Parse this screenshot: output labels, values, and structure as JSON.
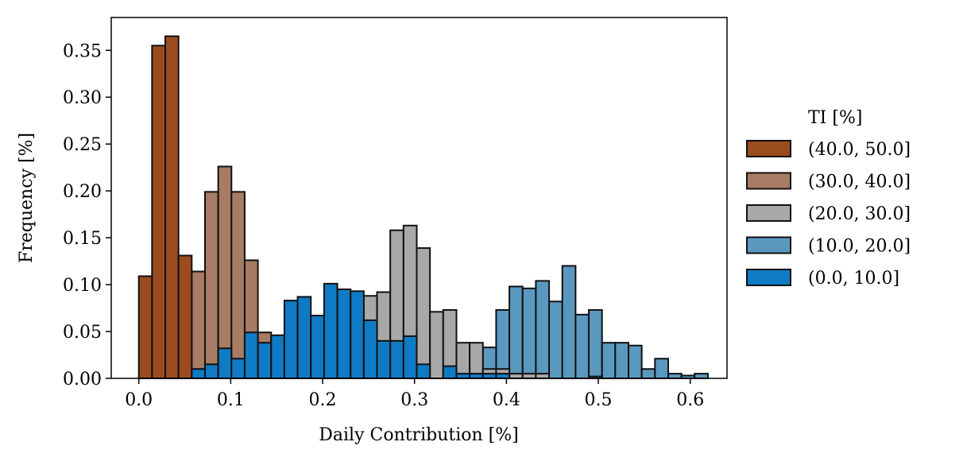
{
  "chart_data": {
    "type": "bar",
    "title": "",
    "xlabel": "Daily Contribution [%]",
    "ylabel": "Frequency [%]",
    "xlim": [
      -0.03,
      0.64
    ],
    "ylim": [
      0,
      0.385
    ],
    "xticks": [
      0.0,
      0.1,
      0.2,
      0.3,
      0.4,
      0.5,
      0.6
    ],
    "xtick_labels": [
      "0.0",
      "0.1",
      "0.2",
      "0.3",
      "0.4",
      "0.5",
      "0.6"
    ],
    "yticks": [
      0.0,
      0.05,
      0.1,
      0.15,
      0.2,
      0.25,
      0.3,
      0.35
    ],
    "ytick_labels": [
      "0.00",
      "0.05",
      "0.10",
      "0.15",
      "0.20",
      "0.25",
      "0.30",
      "0.35"
    ],
    "grid": false,
    "legend_title": "TI [%]",
    "legend_position": "right-outside",
    "series": [
      {
        "name": "(10.0, 20.0]",
        "color": "#5b98c0",
        "x_start": 0.0,
        "bin_width": 0.0144,
        "values": [
          0.0,
          0.0,
          0.0,
          0.0,
          0.005,
          0.0,
          0.0,
          0.0,
          0.028,
          0.0,
          0.0,
          0.0,
          0.0,
          0.0,
          0.0,
          0.0,
          0.0,
          0.0,
          0.0,
          0.0,
          0.0,
          0.0,
          0.0,
          0.0,
          0.035,
          0.028,
          0.033,
          0.073,
          0.098,
          0.096,
          0.104,
          0.082,
          0.12,
          0.068,
          0.073,
          0.038,
          0.038,
          0.035,
          0.01,
          0.021,
          0.005,
          0.003,
          0.005
        ]
      },
      {
        "name": "(20.0, 30.0]",
        "color": "#a8a8a8",
        "x_start": 0.0,
        "bin_width": 0.0144,
        "values": [
          0.0,
          0.0,
          0.0,
          0.0,
          0.0,
          0.0,
          0.0,
          0.0,
          0.0,
          0.0,
          0.0,
          0.0,
          0.0,
          0.0,
          0.042,
          0.042,
          0.058,
          0.088,
          0.092,
          0.158,
          0.163,
          0.139,
          0.071,
          0.073,
          0.038,
          0.038,
          0.01,
          0.01,
          0.005,
          0.005,
          0.005,
          0.0,
          0.0,
          0.0,
          0.0,
          0.0,
          0.0,
          0.0,
          0.0,
          0.0,
          0.0,
          0.0,
          0.0
        ]
      },
      {
        "name": "(30.0, 40.0]",
        "color": "#a77b64",
        "x_start": 0.0,
        "bin_width": 0.0144,
        "values": [
          0.0,
          0.01,
          0.0,
          0.045,
          0.114,
          0.199,
          0.226,
          0.199,
          0.126,
          0.049,
          0.032,
          0.01,
          0.0,
          0.0,
          0.0,
          0.0,
          0.0,
          0.0,
          0.0,
          0.0,
          0.0,
          0.0,
          0.0,
          0.0,
          0.0,
          0.0,
          0.0,
          0.0,
          0.0,
          0.0,
          0.0,
          0.0,
          0.0,
          0.0,
          0.0,
          0.0,
          0.0,
          0.0,
          0.0,
          0.0,
          0.0,
          0.0,
          0.0
        ]
      },
      {
        "name": "(40.0, 50.0]",
        "color": "#9b4c1f",
        "x_start": 0.0,
        "bin_width": 0.0144,
        "values": [
          0.109,
          0.355,
          0.365,
          0.131,
          0.0,
          0.0,
          0.0,
          0.0,
          0.0,
          0.0,
          0.0,
          0.0,
          0.0,
          0.0,
          0.0,
          0.0,
          0.0,
          0.0,
          0.0,
          0.0,
          0.0,
          0.0,
          0.0,
          0.0,
          0.0,
          0.0,
          0.0,
          0.0,
          0.0,
          0.0,
          0.0,
          0.0,
          0.0,
          0.0,
          0.0,
          0.0,
          0.0,
          0.0,
          0.0,
          0.0,
          0.0,
          0.0,
          0.0
        ]
      },
      {
        "name": "(0.0, 10.0]",
        "color": "#0f7bc4",
        "x_start": 0.0,
        "bin_width": 0.0144,
        "values": [
          0.0,
          0.0,
          0.0,
          0.0,
          0.01,
          0.015,
          0.032,
          0.021,
          0.049,
          0.038,
          0.046,
          0.083,
          0.087,
          0.067,
          0.101,
          0.095,
          0.093,
          0.062,
          0.04,
          0.04,
          0.045,
          0.015,
          0.0,
          0.013,
          0.005,
          0.005,
          0.005,
          0.005,
          0.0,
          0.0,
          0.0,
          0.0,
          0.0,
          0.0,
          0.002,
          0.0,
          0.0,
          0.0,
          0.0,
          0.0,
          0.0,
          0.0,
          0.0
        ]
      }
    ],
    "legend_order": [
      "(40.0, 50.0]",
      "(30.0, 40.0]",
      "(20.0, 30.0]",
      "(10.0, 20.0]",
      "(0.0, 10.0]"
    ]
  }
}
